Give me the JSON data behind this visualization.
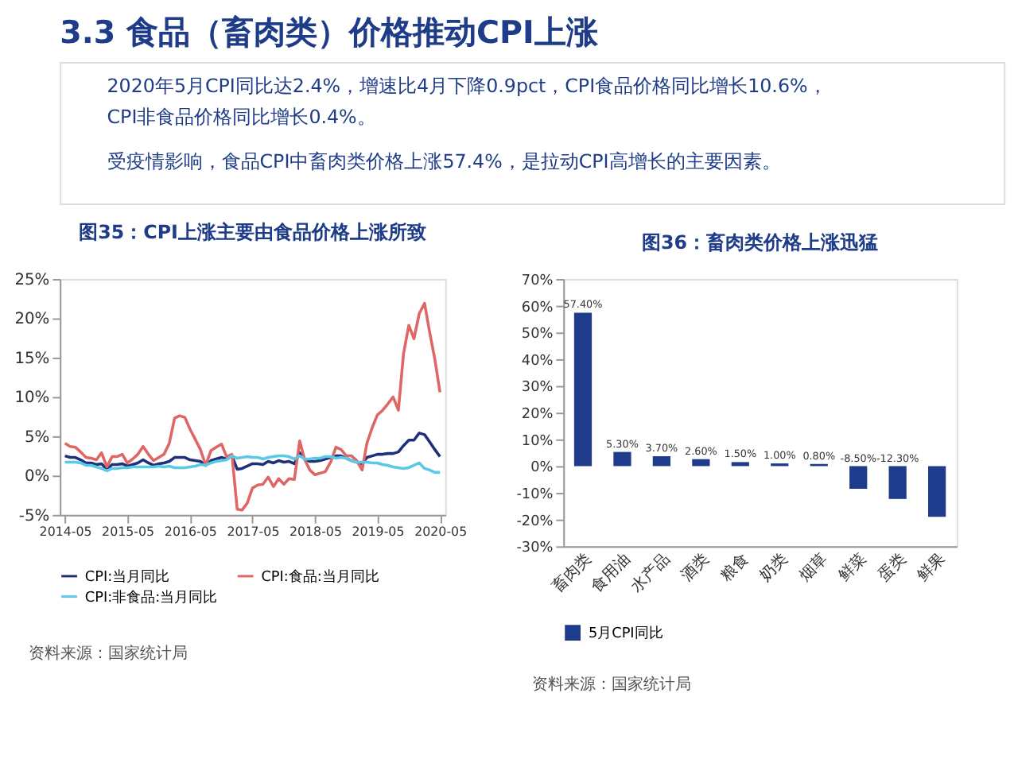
{
  "chart_data": [
    {
      "type": "other",
      "title": "3.3 食品（畜肉类）价格推动CPI上涨",
      "annotations": [
        "2020年5月CPI同比达2.4%，增速比4月下降0.9pct，CPI食品价格同比增长10.6%，\nCPI非食品价格同比增长0.4%。",
        "受疫情影响，食品CPI中畜肉类价格上涨57.4%，是拉动CPI高增长的主要因素。"
      ]
    },
    {
      "type": "line",
      "title": "图35：CPI上涨主要由食品价格上涨所致",
      "x": [
        "2014-05",
        "2014-06",
        "2014-07",
        "2014-08",
        "2014-09",
        "2014-10",
        "2014-11",
        "2014-12",
        "2015-01",
        "2015-02",
        "2015-03",
        "2015-04",
        "2015-05",
        "2015-06",
        "2015-07",
        "2015-08",
        "2015-09",
        "2015-10",
        "2015-11",
        "2015-12",
        "2016-01",
        "2016-02",
        "2016-03",
        "2016-04",
        "2016-05",
        "2016-06",
        "2016-07",
        "2016-08",
        "2016-09",
        "2016-10",
        "2016-11",
        "2016-12",
        "2017-01",
        "2017-02",
        "2017-03",
        "2017-04",
        "2017-05",
        "2017-06",
        "2017-07",
        "2017-08",
        "2017-09",
        "2017-10",
        "2017-11",
        "2017-12",
        "2018-01",
        "2018-02",
        "2018-03",
        "2018-04",
        "2018-05",
        "2018-06",
        "2018-07",
        "2018-08",
        "2018-09",
        "2018-10",
        "2018-11",
        "2018-12",
        "2019-01",
        "2019-02",
        "2019-03",
        "2019-04",
        "2019-05",
        "2019-06",
        "2019-07",
        "2019-08",
        "2019-09",
        "2019-10",
        "2019-11",
        "2019-12",
        "2020-01",
        "2020-02",
        "2020-03",
        "2020-04",
        "2020-05"
      ],
      "series": [
        {
          "name": "CPI:当月同比",
          "color": "#1f2f7a",
          "values": [
            2.5,
            2.3,
            2.3,
            2.0,
            1.6,
            1.6,
            1.4,
            1.5,
            0.8,
            1.4,
            1.4,
            1.5,
            1.2,
            1.4,
            1.6,
            2.0,
            1.6,
            1.3,
            1.5,
            1.6,
            1.8,
            2.3,
            2.3,
            2.3,
            2.0,
            1.9,
            1.8,
            1.3,
            1.9,
            2.1,
            2.3,
            2.1,
            2.5,
            0.8,
            0.9,
            1.2,
            1.5,
            1.5,
            1.4,
            1.8,
            1.6,
            1.9,
            1.7,
            1.8,
            1.5,
            2.9,
            2.1,
            1.8,
            1.8,
            1.9,
            2.1,
            2.3,
            2.5,
            2.5,
            2.2,
            1.9,
            1.7,
            1.5,
            2.3,
            2.5,
            2.7,
            2.7,
            2.8,
            2.8,
            3.0,
            3.8,
            4.5,
            4.5,
            5.4,
            5.2,
            4.3,
            3.3,
            2.4
          ]
        },
        {
          "name": "CPI:食品:当月同比",
          "color": "#e06666",
          "values": [
            4.1,
            3.7,
            3.6,
            3.0,
            2.3,
            2.2,
            2.0,
            2.9,
            1.1,
            2.4,
            2.4,
            2.7,
            1.6,
            2.1,
            2.7,
            3.7,
            2.7,
            1.9,
            2.3,
            2.7,
            4.1,
            7.3,
            7.6,
            7.4,
            5.9,
            4.6,
            3.3,
            1.3,
            3.2,
            3.6,
            4.0,
            2.4,
            2.7,
            -4.3,
            -4.4,
            -3.5,
            -1.6,
            -1.2,
            -1.1,
            -0.2,
            -1.4,
            -0.4,
            -1.1,
            -0.4,
            -0.5,
            4.4,
            2.1,
            0.7,
            0.1,
            0.3,
            0.5,
            1.7,
            3.6,
            3.3,
            2.5,
            2.5,
            1.9,
            0.7,
            4.1,
            6.1,
            7.7,
            8.3,
            9.1,
            10.0,
            8.3,
            15.5,
            19.1,
            17.4,
            20.6,
            21.9,
            18.3,
            14.8,
            10.6
          ]
        },
        {
          "name": "CPI:非食品:当月同比",
          "color": "#5bc8e6",
          "values": [
            1.7,
            1.7,
            1.7,
            1.6,
            1.3,
            1.3,
            1.1,
            0.9,
            0.6,
            0.9,
            0.9,
            1.0,
            1.0,
            1.1,
            1.1,
            1.1,
            1.1,
            1.1,
            1.2,
            1.1,
            1.2,
            1.0,
            1.0,
            1.0,
            1.1,
            1.2,
            1.4,
            1.3,
            1.6,
            1.8,
            1.9,
            2.0,
            2.5,
            2.2,
            2.3,
            2.4,
            2.3,
            2.3,
            2.1,
            2.3,
            2.4,
            2.5,
            2.5,
            2.4,
            2.1,
            2.5,
            2.1,
            2.1,
            2.2,
            2.2,
            2.4,
            2.4,
            2.2,
            2.3,
            2.2,
            1.9,
            1.7,
            1.7,
            1.7,
            1.6,
            1.6,
            1.4,
            1.3,
            1.1,
            1.0,
            0.9,
            1.0,
            1.3,
            1.6,
            0.9,
            0.7,
            0.4,
            0.4
          ]
        }
      ],
      "xlim": [
        "2014-04",
        "2020-06"
      ],
      "xticks": [
        "2014-05",
        "2015-05",
        "2016-05",
        "2017-05",
        "2018-05",
        "2019-05",
        "2020-05"
      ],
      "ylim": [
        -5,
        25
      ],
      "yticks": [
        {
          "value": -5,
          "label": "-5%"
        },
        {
          "value": 0,
          "label": "0%"
        },
        {
          "value": 5,
          "label": "5%"
        },
        {
          "value": 10,
          "label": "10%"
        },
        {
          "value": 15,
          "label": "15%"
        },
        {
          "value": 20,
          "label": "20%"
        },
        {
          "value": 25,
          "label": "25%"
        }
      ],
      "legend": "bottom",
      "grid": false,
      "annotations": [
        "资料来源：国家统计局"
      ]
    },
    {
      "type": "bar",
      "title": "图36：畜肉类价格上涨迅猛",
      "categories": [
        "畜肉类",
        "食用油",
        "水产品",
        "酒类",
        "粮食",
        "奶类",
        "烟草",
        "鲜菜",
        "蛋类",
        "鲜果"
      ],
      "series": [
        {
          "name": "5月CPI同比",
          "color": "#1f3c8c",
          "values": [
            57.4,
            5.3,
            3.7,
            2.6,
            1.5,
            1.0,
            0.8,
            -8.5,
            -12.3,
            -19
          ]
        }
      ],
      "value_labels": [
        "57.40%",
        "5.30%",
        "3.70%",
        "2.60%",
        "1.50%",
        "1.00%",
        "0.80%",
        "-8.50%",
        "-12.30%",
        null
      ],
      "ylim": [
        -30,
        70
      ],
      "yticks": [
        {
          "value": -30,
          "label": "-30%"
        },
        {
          "value": -20,
          "label": "-20%"
        },
        {
          "value": -10,
          "label": "-10%"
        },
        {
          "value": 0,
          "label": "0%"
        },
        {
          "value": 10,
          "label": "10%"
        },
        {
          "value": 20,
          "label": "20%"
        },
        {
          "value": 30,
          "label": "30%"
        },
        {
          "value": 40,
          "label": "40%"
        },
        {
          "value": 50,
          "label": "50%"
        },
        {
          "value": 60,
          "label": "60%"
        },
        {
          "value": 70,
          "label": "70%"
        }
      ],
      "legend": "bottom",
      "grid": false,
      "annotations": [
        "资料来源：国家统计局"
      ]
    }
  ]
}
